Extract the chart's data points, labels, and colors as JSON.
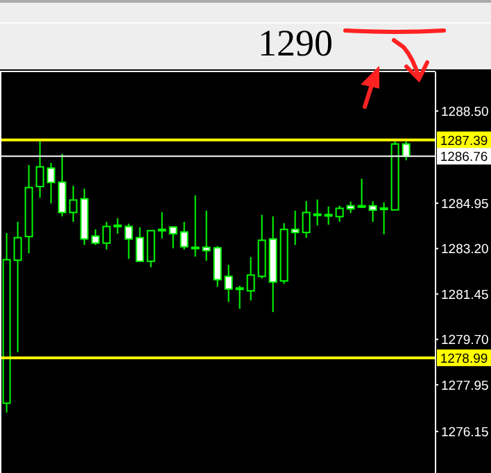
{
  "chart_data": {
    "type": "candlestick",
    "annotations": [
      "1290"
    ],
    "categories": [
      null,
      null,
      null,
      null,
      null,
      null,
      null,
      null,
      null,
      null,
      null,
      null,
      null,
      null,
      null,
      null,
      null,
      null,
      null,
      null,
      null,
      null,
      null,
      null,
      null,
      null,
      null,
      null,
      null,
      null,
      null,
      null,
      null,
      null,
      null,
      null,
      null
    ],
    "ohlc": [
      [
        1277.24,
        1283.8,
        1276.88,
        1282.77
      ],
      [
        1282.75,
        1284.23,
        1279.2,
        1283.62
      ],
      [
        1283.66,
        1286.42,
        1283.02,
        1285.55
      ],
      [
        1285.59,
        1287.33,
        1285.16,
        1286.35
      ],
      [
        1286.3,
        1286.5,
        1284.94,
        1285.75
      ],
      [
        1285.76,
        1286.85,
        1284.44,
        1284.59
      ],
      [
        1284.59,
        1285.62,
        1284.23,
        1285.07
      ],
      [
        1285.12,
        1285.51,
        1283.34,
        1283.57
      ],
      [
        1283.68,
        1283.94,
        1283.34,
        1283.41
      ],
      [
        1283.41,
        1284.23,
        1283.16,
        1284.05
      ],
      [
        1284.07,
        1284.37,
        1283.77,
        1284.1
      ],
      [
        1284.05,
        1284.16,
        1282.8,
        1283.57
      ],
      [
        1283.62,
        1284.02,
        1282.7,
        1282.71
      ],
      [
        1282.71,
        1283.91,
        1282.48,
        1283.89
      ],
      [
        1283.91,
        1284.6,
        1283.59,
        1283.94
      ],
      [
        1284.03,
        1284.05,
        1283.21,
        1283.77
      ],
      [
        1283.84,
        1284.23,
        1283.16,
        1283.27
      ],
      [
        1283.2,
        1285.25,
        1282.89,
        1283.25
      ],
      [
        1283.25,
        1284.66,
        1282.73,
        1283.12
      ],
      [
        1283.23,
        1283.3,
        1281.73,
        1282.0
      ],
      [
        1282.13,
        1282.57,
        1281.14,
        1281.64
      ],
      [
        1281.64,
        1281.77,
        1280.88,
        1281.68
      ],
      [
        1281.57,
        1282.87,
        1281.2,
        1282.18
      ],
      [
        1282.13,
        1284.5,
        1282.05,
        1283.52
      ],
      [
        1283.57,
        1284.44,
        1280.75,
        1281.91
      ],
      [
        1281.95,
        1284.18,
        1281.84,
        1283.94
      ],
      [
        1283.94,
        1284.66,
        1283.34,
        1283.82
      ],
      [
        1283.82,
        1285.03,
        1283.61,
        1284.59
      ],
      [
        1284.5,
        1285.09,
        1284.09,
        1284.53
      ],
      [
        1284.48,
        1284.82,
        1284.12,
        1284.51
      ],
      [
        1284.43,
        1284.85,
        1284.23,
        1284.75
      ],
      [
        1284.85,
        1285.01,
        1284.57,
        1284.73
      ],
      [
        1284.82,
        1285.89,
        1284.76,
        1284.85
      ],
      [
        1284.85,
        1285.03,
        1284.23,
        1284.68
      ],
      [
        1284.73,
        1284.98,
        1283.75,
        1284.76
      ],
      [
        1284.69,
        1287.33,
        1284.68,
        1287.23
      ],
      [
        1287.23,
        1287.33,
        1286.6,
        1286.76
      ]
    ],
    "color": "#00ff00",
    "colors": [
      "#000000",
      "#000000",
      "#000000",
      "#000000",
      "#ffffff",
      "#ffffff",
      "#000000",
      "#ffffff",
      "#ffffff",
      "#000000",
      "#000000",
      "#ffffff",
      "#ffffff",
      "#000000",
      "#000000",
      "#ffffff",
      "#ffffff",
      "#000000",
      "#ffffff",
      "#ffffff",
      "#ffffff",
      "#000000",
      "#000000",
      "#000000",
      "#ffffff",
      "#000000",
      "#ffffff",
      "#000000",
      "#000000",
      "#000000",
      "#000000",
      "#ffffff",
      "#000000",
      "#ffffff",
      "#000000",
      "#000000",
      "#ffffff"
    ],
    "ylim": [
      1274.55,
      1290.0
    ],
    "yticks": [
      {
        "value": 1288.5,
        "label": "1288.50"
      },
      1284.95,
      {
        "value": 1283.2,
        "label": "1283.20"
      },
      1281.45,
      {
        "value": 1279.7,
        "label": "1279.70"
      },
      1277.95,
      1276.15
    ],
    "ref_lines": [
      {
        "axis": "y",
        "value": 1287.39,
        "label": "1287.39",
        "color": "#ffff00"
      },
      {
        "axis": "y",
        "value": 1286.76,
        "label": "1286.76",
        "color": "#ffffff"
      },
      {
        "axis": "y",
        "value": 1278.99,
        "label": "1278.99",
        "color": "#ffff00"
      }
    ],
    "tick_labels": "y",
    "grid": false,
    "legend": false
  }
}
